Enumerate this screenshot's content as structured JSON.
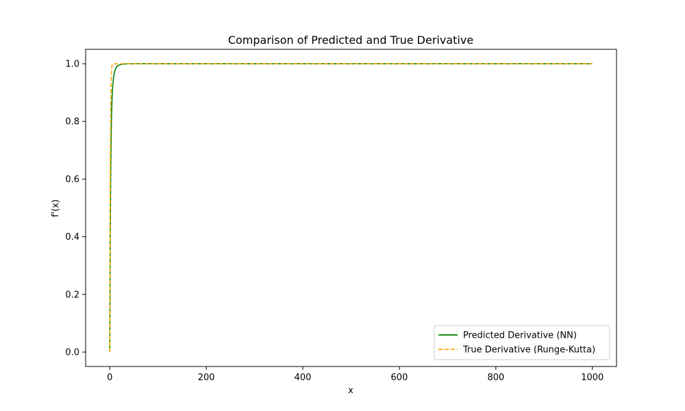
{
  "chart_data": {
    "type": "line",
    "title": "Comparison of Predicted and True Derivative",
    "xlabel": "x",
    "ylabel": "f'(x)",
    "xlim": [
      -50,
      1050
    ],
    "ylim": [
      -0.05,
      1.05
    ],
    "xticks": [
      0,
      200,
      400,
      600,
      800,
      1000
    ],
    "yticks": [
      0.0,
      0.2,
      0.4,
      0.6,
      0.8,
      1.0
    ],
    "xtick_labels": [
      "0",
      "200",
      "400",
      "600",
      "800",
      "1000"
    ],
    "ytick_labels": [
      "0.0",
      "0.2",
      "0.4",
      "0.6",
      "0.8",
      "1.0"
    ],
    "grid": false,
    "legend_position": "lower-right",
    "series": [
      {
        "name": "Predicted Derivative (NN)",
        "color": "#008000",
        "style": "solid",
        "x": [
          0,
          1,
          2,
          3,
          4,
          5,
          6,
          8,
          10,
          12,
          15,
          20,
          25,
          30,
          40,
          50,
          100,
          200,
          400,
          600,
          800,
          1000
        ],
        "y": [
          0.0,
          0.4,
          0.62,
          0.76,
          0.84,
          0.89,
          0.92,
          0.955,
          0.972,
          0.982,
          0.991,
          0.996,
          0.998,
          0.999,
          1.0,
          1.0,
          1.0,
          1.0,
          1.0,
          1.0,
          1.0,
          1.0
        ]
      },
      {
        "name": "True Derivative (Runge-Kutta)",
        "color": "#FFA500",
        "style": "dashed",
        "x": [
          0,
          1,
          2,
          3,
          4,
          5,
          6,
          8,
          10,
          20,
          50,
          100,
          200,
          400,
          600,
          800,
          1000
        ],
        "y": [
          0.0,
          0.6,
          0.85,
          0.95,
          0.985,
          0.995,
          0.999,
          1.0,
          1.0,
          1.0,
          1.0,
          1.0,
          1.0,
          1.0,
          1.0,
          1.0,
          1.0
        ]
      }
    ]
  }
}
